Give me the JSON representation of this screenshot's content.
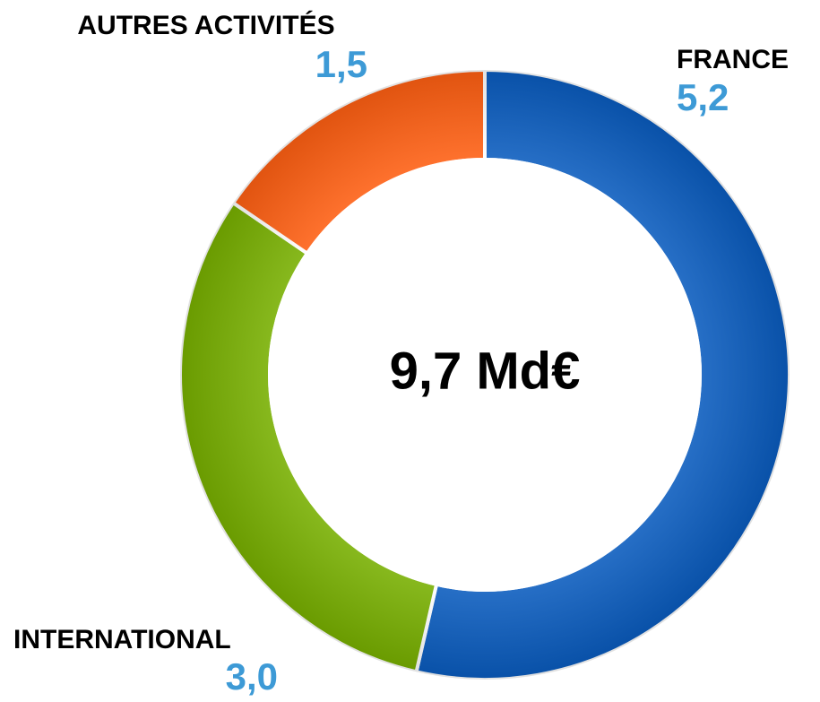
{
  "chart_data": {
    "type": "donut",
    "categories": [
      "FRANCE",
      "INTERNATIONAL",
      "AUTRES ACTIVITÉS"
    ],
    "values": [
      5.2,
      3.0,
      1.5
    ],
    "value_labels": [
      "5,2",
      "3,0",
      "1,5"
    ],
    "colors": [
      "#0a5cbf",
      "#78b000",
      "#ff5f12"
    ],
    "center_label": "9,7 Md€"
  }
}
